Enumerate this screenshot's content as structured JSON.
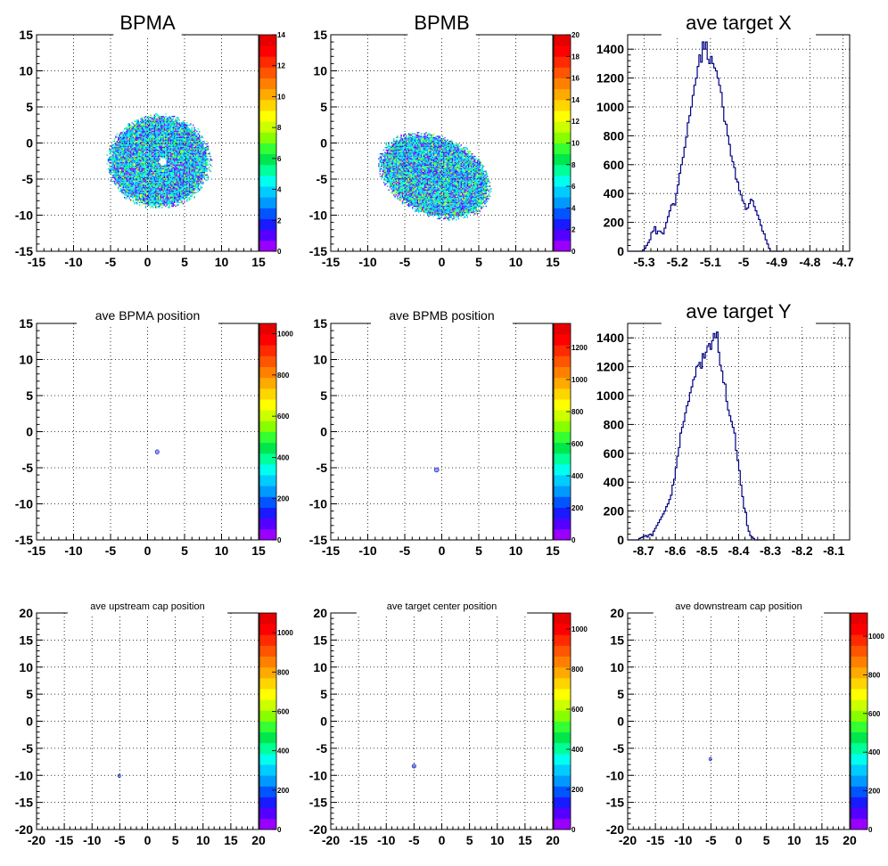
{
  "chart_data": [
    {
      "id": "p1",
      "type": "heatmap",
      "title": "BPMA",
      "title_size": "large",
      "xlim": [
        -15,
        15
      ],
      "ylim": [
        -15,
        15
      ],
      "xticks": [
        -15,
        -10,
        -5,
        0,
        5,
        10,
        15
      ],
      "yticks": [
        -15,
        -10,
        -5,
        0,
        5,
        10,
        15
      ],
      "zmax": 14,
      "zticks": [
        0,
        2,
        4,
        6,
        8,
        10,
        12,
        14
      ],
      "grid": true,
      "blob": {
        "shape": "disc",
        "cx": 1.5,
        "cy": -2.5,
        "rx": 7,
        "ry": 6.5,
        "hole_x": 2,
        "hole_y": -2.5,
        "typical_z": 6
      }
    },
    {
      "id": "p2",
      "type": "heatmap",
      "title": "BPMB",
      "title_size": "large",
      "xlim": [
        -15,
        15
      ],
      "ylim": [
        -15,
        15
      ],
      "xticks": [
        -15,
        -10,
        -5,
        0,
        5,
        10,
        15
      ],
      "yticks": [
        -15,
        -10,
        -5,
        0,
        5,
        10,
        15
      ],
      "zmax": 20,
      "zticks": [
        0,
        2,
        4,
        6,
        8,
        10,
        12,
        14,
        16,
        18,
        20
      ],
      "grid": true,
      "blob": {
        "shape": "tilted-ellipse",
        "cx": -1,
        "cy": -4.5,
        "rx": 8,
        "ry": 5.5,
        "angle_deg": -25,
        "typical_z": 8
      }
    },
    {
      "id": "p3",
      "type": "histogram",
      "title": "ave target X",
      "title_size": "large",
      "xlim": [
        -5.35,
        -4.68
      ],
      "ylim": [
        0,
        1500
      ],
      "xticks": [
        -5.3,
        -5.2,
        -5.1,
        -5.0,
        -4.9,
        -4.8,
        -4.7
      ],
      "xtick_labels": [
        "-5.3",
        "-5.2",
        "-5.1",
        "-5",
        "-4.9",
        "-4.8",
        "-4.7"
      ],
      "yticks": [
        0,
        200,
        400,
        600,
        800,
        1000,
        1200,
        1400
      ],
      "bin_edges_start": -5.35,
      "bin_width": 0.005,
      "values": [
        0,
        0,
        0,
        0,
        0,
        0,
        0,
        0,
        0,
        10,
        20,
        40,
        60,
        80,
        130,
        140,
        170,
        120,
        140,
        140,
        130,
        120,
        160,
        200,
        240,
        280,
        320,
        330,
        320,
        400,
        460,
        540,
        600,
        650,
        720,
        790,
        890,
        940,
        1000,
        1080,
        1150,
        1200,
        1280,
        1360,
        1310,
        1450,
        1400,
        1450,
        1330,
        1300,
        1350,
        1300,
        1270,
        1250,
        1200,
        1150,
        1100,
        1000,
        900,
        880,
        800,
        740,
        660,
        620,
        580,
        500,
        480,
        420,
        390,
        350,
        330,
        290,
        300,
        330,
        360,
        350,
        310,
        280,
        250,
        220,
        180,
        140,
        120,
        80,
        50,
        20,
        0,
        0,
        0,
        0,
        0,
        0,
        0,
        0
      ]
    },
    {
      "id": "p4",
      "type": "heatmap",
      "title": "ave BPMA position",
      "title_size": "small",
      "xlim": [
        -15,
        15
      ],
      "ylim": [
        -15,
        15
      ],
      "xticks": [
        -15,
        -10,
        -5,
        0,
        5,
        10,
        15
      ],
      "yticks": [
        -15,
        -10,
        -5,
        0,
        5,
        10,
        15
      ],
      "zmax": 1050,
      "zticks": [
        0,
        200,
        400,
        600,
        800,
        1000
      ],
      "grid": true,
      "blob": {
        "shape": "dot",
        "cx": 1.3,
        "cy": -2.8,
        "rx": 0.25,
        "ry": 0.3
      }
    },
    {
      "id": "p5",
      "type": "heatmap",
      "title": "ave BPMB position",
      "title_size": "small",
      "xlim": [
        -15,
        15
      ],
      "ylim": [
        -15,
        15
      ],
      "xticks": [
        -15,
        -10,
        -5,
        0,
        5,
        10,
        15
      ],
      "yticks": [
        -15,
        -10,
        -5,
        0,
        5,
        10,
        15
      ],
      "zmax": 1350,
      "zticks": [
        0,
        200,
        400,
        600,
        800,
        1000,
        1200
      ],
      "grid": true,
      "blob": {
        "shape": "dot",
        "cx": -0.7,
        "cy": -5.3,
        "rx": 0.3,
        "ry": 0.3
      }
    },
    {
      "id": "p6",
      "type": "histogram",
      "title": "ave target Y",
      "title_size": "large",
      "xlim": [
        -8.75,
        -8.05
      ],
      "ylim": [
        0,
        1500
      ],
      "xticks": [
        -8.7,
        -8.6,
        -8.5,
        -8.4,
        -8.3,
        -8.2,
        -8.1
      ],
      "xtick_labels": [
        "-8.7",
        "-8.6",
        "-8.5",
        "-8.4",
        "-8.3",
        "-8.2",
        "-8.1"
      ],
      "yticks": [
        0,
        200,
        400,
        600,
        800,
        1000,
        1200,
        1400
      ],
      "bin_edges_start": -8.75,
      "bin_width": 0.005,
      "values": [
        0,
        0,
        0,
        0,
        0,
        0,
        0,
        10,
        15,
        20,
        25,
        30,
        20,
        35,
        40,
        30,
        60,
        80,
        100,
        120,
        140,
        160,
        180,
        200,
        230,
        250,
        280,
        310,
        380,
        420,
        500,
        580,
        640,
        740,
        780,
        820,
        880,
        930,
        960,
        1020,
        1060,
        1110,
        1130,
        1200,
        1210,
        1230,
        1190,
        1290,
        1260,
        1300,
        1340,
        1360,
        1320,
        1380,
        1430,
        1400,
        1440,
        1300,
        1210,
        1170,
        1090,
        1080,
        960,
        900,
        860,
        820,
        780,
        740,
        620,
        550,
        480,
        380,
        300,
        220,
        190,
        100,
        60,
        30,
        20,
        10,
        0,
        0,
        0,
        0,
        0,
        0,
        0,
        0
      ]
    },
    {
      "id": "p7",
      "type": "heatmap",
      "title": "ave upstream cap position",
      "title_size": "tiny",
      "xlim": [
        -20,
        20
      ],
      "ylim": [
        -20,
        20
      ],
      "xticks": [
        -20,
        -15,
        -10,
        -5,
        0,
        5,
        10,
        15,
        20
      ],
      "yticks": [
        -20,
        -15,
        -10,
        -5,
        0,
        5,
        10,
        15,
        20
      ],
      "zmax": 1100,
      "zticks": [
        0,
        200,
        400,
        600,
        800,
        1000
      ],
      "grid": true,
      "blob": {
        "shape": "dot",
        "cx": -5.1,
        "cy": -10.1,
        "rx": 0.25,
        "ry": 0.3
      }
    },
    {
      "id": "p8",
      "type": "heatmap",
      "title": "ave target center  position",
      "title_size": "tiny",
      "xlim": [
        -20,
        20
      ],
      "ylim": [
        -20,
        20
      ],
      "xticks": [
        -20,
        -15,
        -10,
        -5,
        0,
        5,
        10,
        15,
        20
      ],
      "yticks": [
        -20,
        -15,
        -10,
        -5,
        0,
        5,
        10,
        15,
        20
      ],
      "zmax": 1080,
      "zticks": [
        0,
        200,
        400,
        600,
        800,
        1000
      ],
      "grid": true,
      "blob": {
        "shape": "dot",
        "cx": -5,
        "cy": -8.3,
        "rx": 0.35,
        "ry": 0.35
      }
    },
    {
      "id": "p9",
      "type": "heatmap",
      "title": "ave downstream cap position",
      "title_size": "tiny",
      "xlim": [
        -20,
        20
      ],
      "ylim": [
        -20,
        20
      ],
      "xticks": [
        -20,
        -15,
        -10,
        -5,
        0,
        5,
        10,
        15,
        20
      ],
      "yticks": [
        -20,
        -15,
        -10,
        -5,
        0,
        5,
        10,
        15,
        20
      ],
      "zmax": 1120,
      "zticks": [
        0,
        200,
        400,
        600,
        800,
        1000
      ],
      "grid": true,
      "blob": {
        "shape": "dot",
        "cx": -5.1,
        "cy": -7,
        "rx": 0.25,
        "ry": 0.3
      }
    }
  ],
  "colors": {
    "palette": [
      "#9900ff",
      "#5500ff",
      "#1a1aff",
      "#0055ff",
      "#0099ff",
      "#00ccff",
      "#00ffee",
      "#00ff99",
      "#00e64d",
      "#33ff33",
      "#88ff00",
      "#ccff00",
      "#ffff00",
      "#ffd500",
      "#ffaa00",
      "#ff8000",
      "#ff5500",
      "#ff2a00",
      "#ff0000",
      "#e60000"
    ],
    "hist_line": "#000080",
    "grid": "#000000"
  }
}
